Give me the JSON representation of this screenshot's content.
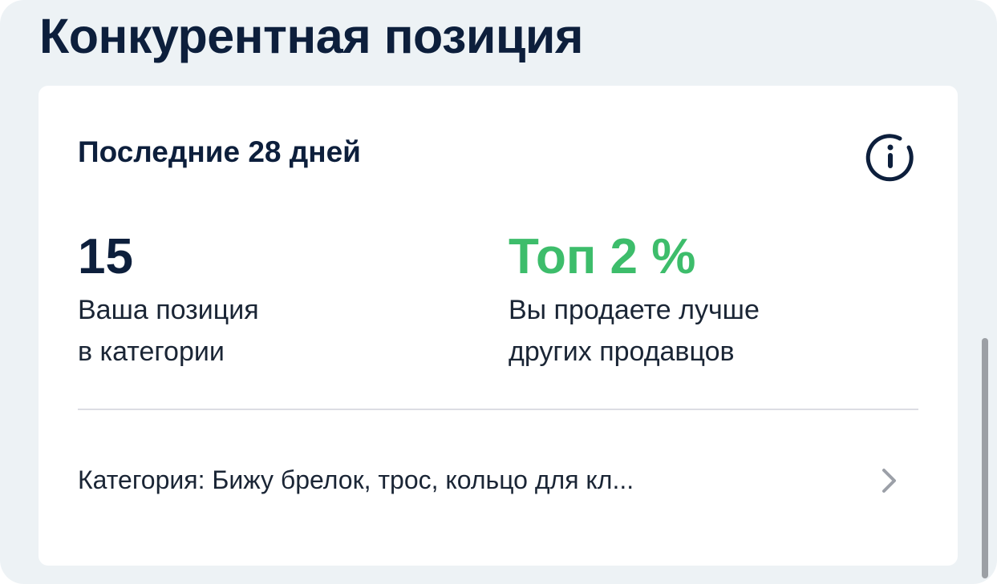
{
  "header": {
    "title": "Конкурентная позиция"
  },
  "card": {
    "period": "Последние 28 дней",
    "info_icon": "info-icon",
    "position": {
      "value": "15",
      "label_line1": "Ваша позиция",
      "label_line2": "в категории"
    },
    "top": {
      "value": "Топ 2 %",
      "label_line1": "Вы продаете лучше",
      "label_line2": "других продавцов"
    },
    "category": {
      "text": "Категория: Бижу брелок, трос, кольцо для кл...",
      "icon": "chevron-right-icon"
    }
  },
  "colors": {
    "accent_green": "#3dbd6b",
    "text_dark": "#0d1f3c",
    "background": "#edf2f5"
  }
}
